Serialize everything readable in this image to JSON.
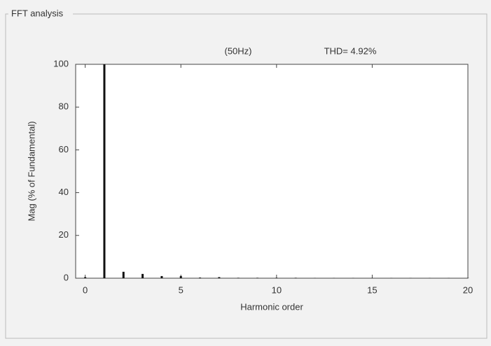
{
  "chart_data": {
    "type": "bar",
    "panel_title": "FFT analysis",
    "title": "(50Hz)",
    "annotation": "THD= 4.92%",
    "x_label": "Harmonic order",
    "y_label": "Mag (% of Fundamental)",
    "x": [
      0,
      1,
      2,
      3,
      4,
      5,
      6,
      7,
      8,
      9,
      10,
      11,
      12,
      13,
      14,
      15,
      16,
      17,
      18,
      19,
      20
    ],
    "values": [
      0.5,
      100,
      3,
      2,
      1,
      1,
      0.3,
      0.5,
      0.2,
      0.2,
      0.2,
      0.2,
      0.1,
      0.1,
      0.1,
      0.1,
      0.1,
      0.1,
      0.1,
      0.1,
      0.1
    ],
    "color": "#111111",
    "xlim": [
      -0.5,
      20
    ],
    "ylim": [
      0,
      100
    ],
    "xticks": [
      0,
      5,
      10,
      15,
      20
    ],
    "yticks": [
      0,
      20,
      40,
      60,
      80,
      100
    ],
    "grid": false
  }
}
